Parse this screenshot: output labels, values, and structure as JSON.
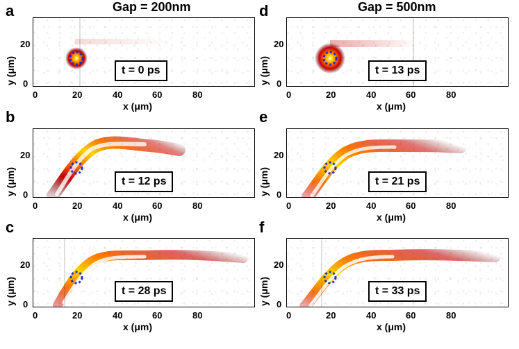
{
  "columns": {
    "left_title": "Gap = 200nm",
    "right_title": "Gap = 500nm"
  },
  "axis": {
    "y_label": "y (μm)",
    "x_label": "x (μm)",
    "y_ticks": [
      "0",
      "20"
    ],
    "x_ticks": [
      "0",
      "20",
      "40",
      "60",
      "80"
    ]
  },
  "panels": [
    {
      "letter": "a",
      "time": "t = 0 ps"
    },
    {
      "letter": "b",
      "time": "t = 12 ps"
    },
    {
      "letter": "c",
      "time": "t = 28 ps"
    },
    {
      "letter": "d",
      "time": "t = 13 ps"
    },
    {
      "letter": "e",
      "time": "t = 21 ps"
    },
    {
      "letter": "f",
      "time": "t = 33 ps"
    }
  ],
  "colors": {
    "hot_white": "#ffffff",
    "hot_yellow": "#ffd400",
    "hot_orange": "#ff7a00",
    "hot_red": "#c80000",
    "hot_dark": "#5a0000",
    "ring_blue": "#1f2bd6"
  }
}
